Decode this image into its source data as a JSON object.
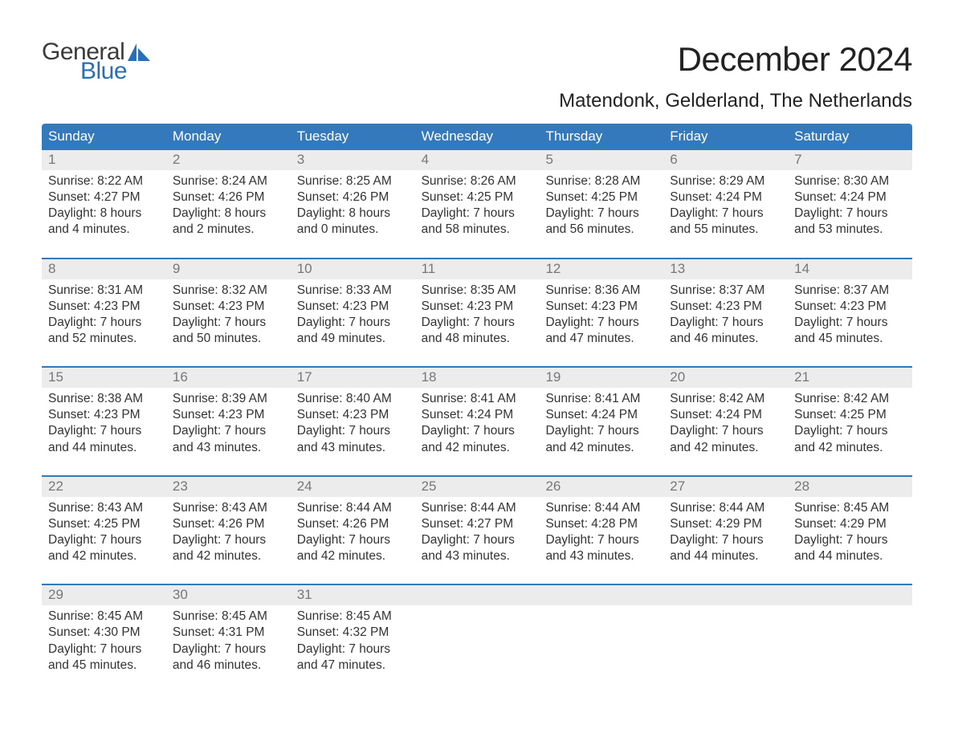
{
  "brand": {
    "word1": "General",
    "word2": "Blue",
    "sail_color": "#2a6fb5",
    "text_gray": "#3a3a3a"
  },
  "title": "December 2024",
  "location": "Matendonk, Gelderland, The Netherlands",
  "colors": {
    "header_bg": "#3579bd",
    "header_text": "#ffffff",
    "week_border": "#3579bd",
    "daynum_bg": "#ececec",
    "daynum_text": "#777777",
    "body_text": "#333333",
    "page_bg": "#ffffff"
  },
  "fonts": {
    "title_pt": 42,
    "location_pt": 24,
    "weekday_pt": 17,
    "daynum_pt": 17,
    "body_pt": 15.5
  },
  "weekdays": [
    "Sunday",
    "Monday",
    "Tuesday",
    "Wednesday",
    "Thursday",
    "Friday",
    "Saturday"
  ],
  "weeks": [
    [
      {
        "n": "1",
        "sr": "Sunrise: 8:22 AM",
        "ss": "Sunset: 4:27 PM",
        "d1": "Daylight: 8 hours",
        "d2": "and 4 minutes."
      },
      {
        "n": "2",
        "sr": "Sunrise: 8:24 AM",
        "ss": "Sunset: 4:26 PM",
        "d1": "Daylight: 8 hours",
        "d2": "and 2 minutes."
      },
      {
        "n": "3",
        "sr": "Sunrise: 8:25 AM",
        "ss": "Sunset: 4:26 PM",
        "d1": "Daylight: 8 hours",
        "d2": "and 0 minutes."
      },
      {
        "n": "4",
        "sr": "Sunrise: 8:26 AM",
        "ss": "Sunset: 4:25 PM",
        "d1": "Daylight: 7 hours",
        "d2": "and 58 minutes."
      },
      {
        "n": "5",
        "sr": "Sunrise: 8:28 AM",
        "ss": "Sunset: 4:25 PM",
        "d1": "Daylight: 7 hours",
        "d2": "and 56 minutes."
      },
      {
        "n": "6",
        "sr": "Sunrise: 8:29 AM",
        "ss": "Sunset: 4:24 PM",
        "d1": "Daylight: 7 hours",
        "d2": "and 55 minutes."
      },
      {
        "n": "7",
        "sr": "Sunrise: 8:30 AM",
        "ss": "Sunset: 4:24 PM",
        "d1": "Daylight: 7 hours",
        "d2": "and 53 minutes."
      }
    ],
    [
      {
        "n": "8",
        "sr": "Sunrise: 8:31 AM",
        "ss": "Sunset: 4:23 PM",
        "d1": "Daylight: 7 hours",
        "d2": "and 52 minutes."
      },
      {
        "n": "9",
        "sr": "Sunrise: 8:32 AM",
        "ss": "Sunset: 4:23 PM",
        "d1": "Daylight: 7 hours",
        "d2": "and 50 minutes."
      },
      {
        "n": "10",
        "sr": "Sunrise: 8:33 AM",
        "ss": "Sunset: 4:23 PM",
        "d1": "Daylight: 7 hours",
        "d2": "and 49 minutes."
      },
      {
        "n": "11",
        "sr": "Sunrise: 8:35 AM",
        "ss": "Sunset: 4:23 PM",
        "d1": "Daylight: 7 hours",
        "d2": "and 48 minutes."
      },
      {
        "n": "12",
        "sr": "Sunrise: 8:36 AM",
        "ss": "Sunset: 4:23 PM",
        "d1": "Daylight: 7 hours",
        "d2": "and 47 minutes."
      },
      {
        "n": "13",
        "sr": "Sunrise: 8:37 AM",
        "ss": "Sunset: 4:23 PM",
        "d1": "Daylight: 7 hours",
        "d2": "and 46 minutes."
      },
      {
        "n": "14",
        "sr": "Sunrise: 8:37 AM",
        "ss": "Sunset: 4:23 PM",
        "d1": "Daylight: 7 hours",
        "d2": "and 45 minutes."
      }
    ],
    [
      {
        "n": "15",
        "sr": "Sunrise: 8:38 AM",
        "ss": "Sunset: 4:23 PM",
        "d1": "Daylight: 7 hours",
        "d2": "and 44 minutes."
      },
      {
        "n": "16",
        "sr": "Sunrise: 8:39 AM",
        "ss": "Sunset: 4:23 PM",
        "d1": "Daylight: 7 hours",
        "d2": "and 43 minutes."
      },
      {
        "n": "17",
        "sr": "Sunrise: 8:40 AM",
        "ss": "Sunset: 4:23 PM",
        "d1": "Daylight: 7 hours",
        "d2": "and 43 minutes."
      },
      {
        "n": "18",
        "sr": "Sunrise: 8:41 AM",
        "ss": "Sunset: 4:24 PM",
        "d1": "Daylight: 7 hours",
        "d2": "and 42 minutes."
      },
      {
        "n": "19",
        "sr": "Sunrise: 8:41 AM",
        "ss": "Sunset: 4:24 PM",
        "d1": "Daylight: 7 hours",
        "d2": "and 42 minutes."
      },
      {
        "n": "20",
        "sr": "Sunrise: 8:42 AM",
        "ss": "Sunset: 4:24 PM",
        "d1": "Daylight: 7 hours",
        "d2": "and 42 minutes."
      },
      {
        "n": "21",
        "sr": "Sunrise: 8:42 AM",
        "ss": "Sunset: 4:25 PM",
        "d1": "Daylight: 7 hours",
        "d2": "and 42 minutes."
      }
    ],
    [
      {
        "n": "22",
        "sr": "Sunrise: 8:43 AM",
        "ss": "Sunset: 4:25 PM",
        "d1": "Daylight: 7 hours",
        "d2": "and 42 minutes."
      },
      {
        "n": "23",
        "sr": "Sunrise: 8:43 AM",
        "ss": "Sunset: 4:26 PM",
        "d1": "Daylight: 7 hours",
        "d2": "and 42 minutes."
      },
      {
        "n": "24",
        "sr": "Sunrise: 8:44 AM",
        "ss": "Sunset: 4:26 PM",
        "d1": "Daylight: 7 hours",
        "d2": "and 42 minutes."
      },
      {
        "n": "25",
        "sr": "Sunrise: 8:44 AM",
        "ss": "Sunset: 4:27 PM",
        "d1": "Daylight: 7 hours",
        "d2": "and 43 minutes."
      },
      {
        "n": "26",
        "sr": "Sunrise: 8:44 AM",
        "ss": "Sunset: 4:28 PM",
        "d1": "Daylight: 7 hours",
        "d2": "and 43 minutes."
      },
      {
        "n": "27",
        "sr": "Sunrise: 8:44 AM",
        "ss": "Sunset: 4:29 PM",
        "d1": "Daylight: 7 hours",
        "d2": "and 44 minutes."
      },
      {
        "n": "28",
        "sr": "Sunrise: 8:45 AM",
        "ss": "Sunset: 4:29 PM",
        "d1": "Daylight: 7 hours",
        "d2": "and 44 minutes."
      }
    ],
    [
      {
        "n": "29",
        "sr": "Sunrise: 8:45 AM",
        "ss": "Sunset: 4:30 PM",
        "d1": "Daylight: 7 hours",
        "d2": "and 45 minutes."
      },
      {
        "n": "30",
        "sr": "Sunrise: 8:45 AM",
        "ss": "Sunset: 4:31 PM",
        "d1": "Daylight: 7 hours",
        "d2": "and 46 minutes."
      },
      {
        "n": "31",
        "sr": "Sunrise: 8:45 AM",
        "ss": "Sunset: 4:32 PM",
        "d1": "Daylight: 7 hours",
        "d2": "and 47 minutes."
      },
      {
        "empty": true
      },
      {
        "empty": true
      },
      {
        "empty": true
      },
      {
        "empty": true
      }
    ]
  ]
}
